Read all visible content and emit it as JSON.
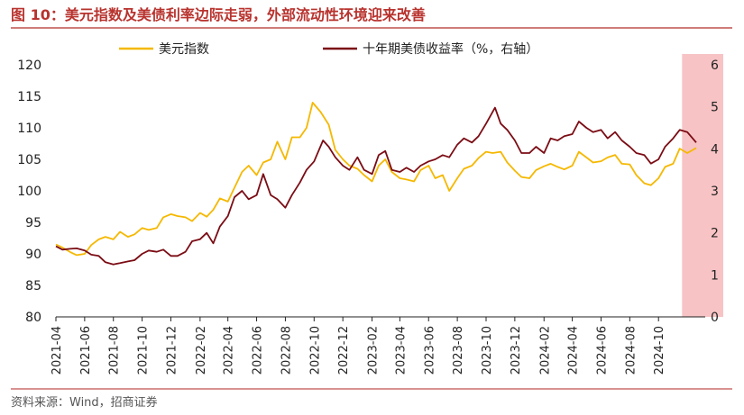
{
  "figure": {
    "title": "图 10：美元指数及美债利率边际走弱，外部流动性环境迎来改善",
    "source": "资料来源：Wind，招商证券"
  },
  "colors": {
    "title": "#b8332e",
    "rule": "#c0504d",
    "dxy": "#f5b800",
    "yield": "#7b0c14",
    "shade": "#f6b8ba"
  },
  "chart_data": {
    "type": "line",
    "x_ticks": [
      "2021-04",
      "2021-06",
      "2021-08",
      "2021-10",
      "2021-12",
      "2022-02",
      "2022-04",
      "2022-06",
      "2022-08",
      "2022-10",
      "2022-12",
      "2023-02",
      "2023-04",
      "2023-06",
      "2023-08",
      "2023-10",
      "2023-12",
      "2024-02",
      "2024-04",
      "2024-06",
      "2024-08",
      "2024-10"
    ],
    "y_left": {
      "min": 80,
      "max": 120,
      "ticks": [
        "80",
        "85",
        "90",
        "95",
        "100",
        "105",
        "110",
        "115",
        "120"
      ]
    },
    "y_right": {
      "min": 0,
      "max": 6,
      "ticks": [
        "0",
        "1",
        "2",
        "3",
        "4",
        "5",
        "6"
      ]
    },
    "x_range": [
      "2021-04-01",
      "2024-12-20"
    ],
    "shaded_region": {
      "from": "2024-11-20",
      "to": "2024-12-20"
    },
    "legend_position": "top",
    "series": [
      {
        "name": "美元指数",
        "axis": "left",
        "dates": [
          "2021-04-01",
          "2021-04-15",
          "2021-05-01",
          "2021-05-15",
          "2021-06-01",
          "2021-06-15",
          "2021-07-01",
          "2021-07-15",
          "2021-08-01",
          "2021-08-15",
          "2021-09-01",
          "2021-09-15",
          "2021-10-01",
          "2021-10-15",
          "2021-11-01",
          "2021-11-15",
          "2021-12-01",
          "2021-12-15",
          "2022-01-01",
          "2022-01-15",
          "2022-02-01",
          "2022-02-15",
          "2022-03-01",
          "2022-03-15",
          "2022-04-01",
          "2022-04-15",
          "2022-05-01",
          "2022-05-15",
          "2022-06-01",
          "2022-06-15",
          "2022-07-01",
          "2022-07-15",
          "2022-08-01",
          "2022-08-15",
          "2022-09-01",
          "2022-09-15",
          "2022-09-28",
          "2022-10-15",
          "2022-11-01",
          "2022-11-15",
          "2022-12-01",
          "2022-12-15",
          "2023-01-01",
          "2023-01-15",
          "2023-02-01",
          "2023-02-15",
          "2023-03-01",
          "2023-03-15",
          "2023-04-01",
          "2023-04-15",
          "2023-05-01",
          "2023-05-15",
          "2023-06-01",
          "2023-06-15",
          "2023-07-01",
          "2023-07-15",
          "2023-08-01",
          "2023-08-15",
          "2023-09-01",
          "2023-09-15",
          "2023-10-01",
          "2023-10-15",
          "2023-11-01",
          "2023-11-15",
          "2023-12-01",
          "2023-12-15",
          "2024-01-01",
          "2024-01-15",
          "2024-02-01",
          "2024-02-15",
          "2024-03-01",
          "2024-03-15",
          "2024-04-01",
          "2024-04-15",
          "2024-05-01",
          "2024-05-15",
          "2024-06-01",
          "2024-06-15",
          "2024-07-01",
          "2024-07-15",
          "2024-08-01",
          "2024-08-15",
          "2024-09-01",
          "2024-09-15",
          "2024-10-01",
          "2024-10-15",
          "2024-11-01",
          "2024-11-15",
          "2024-12-01",
          "2024-12-20"
        ],
        "values": [
          91.5,
          91.0,
          90.3,
          89.8,
          90.0,
          91.4,
          92.3,
          92.7,
          92.3,
          93.5,
          92.7,
          93.1,
          94.1,
          93.8,
          94.1,
          95.8,
          96.3,
          96.0,
          95.8,
          95.2,
          96.5,
          95.9,
          97.0,
          98.8,
          98.3,
          100.5,
          103.0,
          104.0,
          102.5,
          104.5,
          105.0,
          107.8,
          105.0,
          108.5,
          108.5,
          110.0,
          114.0,
          112.5,
          110.5,
          106.5,
          105.0,
          104.0,
          103.5,
          102.5,
          101.5,
          104.0,
          105.0,
          103.0,
          102.0,
          101.8,
          101.5,
          103.3,
          104.0,
          102.0,
          102.5,
          100.0,
          102.0,
          103.5,
          104.0,
          105.2,
          106.2,
          106.0,
          106.2,
          104.5,
          103.2,
          102.2,
          102.0,
          103.3,
          103.9,
          104.3,
          103.8,
          103.4,
          104.0,
          106.2,
          105.3,
          104.5,
          104.7,
          105.3,
          105.7,
          104.3,
          104.2,
          102.5,
          101.2,
          100.9,
          102.0,
          103.8,
          104.3,
          106.7,
          106.0,
          106.8
        ]
      },
      {
        "name": "十年期美债收益率（%，右轴）",
        "axis": "right",
        "dates": [
          "2021-04-01",
          "2021-04-15",
          "2021-05-01",
          "2021-05-15",
          "2021-06-01",
          "2021-06-15",
          "2021-07-01",
          "2021-07-15",
          "2021-08-01",
          "2021-08-15",
          "2021-09-01",
          "2021-09-15",
          "2021-10-01",
          "2021-10-15",
          "2021-11-01",
          "2021-11-15",
          "2021-12-01",
          "2021-12-15",
          "2022-01-01",
          "2022-01-15",
          "2022-02-01",
          "2022-02-15",
          "2022-03-01",
          "2022-03-15",
          "2022-04-01",
          "2022-04-15",
          "2022-05-01",
          "2022-05-15",
          "2022-06-01",
          "2022-06-15",
          "2022-07-01",
          "2022-07-15",
          "2022-08-01",
          "2022-08-15",
          "2022-09-01",
          "2022-09-15",
          "2022-10-01",
          "2022-10-20",
          "2022-11-01",
          "2022-11-15",
          "2022-12-01",
          "2022-12-15",
          "2023-01-01",
          "2023-01-15",
          "2023-02-01",
          "2023-02-15",
          "2023-03-01",
          "2023-03-15",
          "2023-04-01",
          "2023-04-15",
          "2023-05-01",
          "2023-05-15",
          "2023-06-01",
          "2023-06-15",
          "2023-07-01",
          "2023-07-15",
          "2023-08-01",
          "2023-08-15",
          "2023-09-01",
          "2023-09-15",
          "2023-10-01",
          "2023-10-20",
          "2023-11-01",
          "2023-11-15",
          "2023-12-01",
          "2023-12-15",
          "2024-01-01",
          "2024-01-15",
          "2024-02-01",
          "2024-02-15",
          "2024-03-01",
          "2024-03-15",
          "2024-04-01",
          "2024-04-15",
          "2024-05-01",
          "2024-05-15",
          "2024-06-01",
          "2024-06-15",
          "2024-07-01",
          "2024-07-15",
          "2024-08-01",
          "2024-08-15",
          "2024-09-01",
          "2024-09-15",
          "2024-10-01",
          "2024-10-15",
          "2024-11-01",
          "2024-11-15",
          "2024-12-01",
          "2024-12-20"
        ],
        "values": [
          1.68,
          1.6,
          1.62,
          1.63,
          1.58,
          1.48,
          1.45,
          1.3,
          1.25,
          1.28,
          1.32,
          1.35,
          1.5,
          1.58,
          1.55,
          1.6,
          1.45,
          1.45,
          1.55,
          1.8,
          1.85,
          2.0,
          1.75,
          2.15,
          2.4,
          2.85,
          3.0,
          2.8,
          2.9,
          3.4,
          2.9,
          2.8,
          2.6,
          2.9,
          3.2,
          3.5,
          3.7,
          4.2,
          4.05,
          3.8,
          3.6,
          3.5,
          3.8,
          3.5,
          3.4,
          3.85,
          3.95,
          3.5,
          3.45,
          3.55,
          3.45,
          3.6,
          3.7,
          3.75,
          3.85,
          3.8,
          4.1,
          4.25,
          4.15,
          4.3,
          4.6,
          4.98,
          4.6,
          4.45,
          4.2,
          3.9,
          3.9,
          4.05,
          3.9,
          4.25,
          4.2,
          4.3,
          4.35,
          4.65,
          4.5,
          4.4,
          4.45,
          4.25,
          4.4,
          4.2,
          4.05,
          3.9,
          3.85,
          3.65,
          3.75,
          4.05,
          4.25,
          4.45,
          4.4,
          4.15
        ]
      }
    ]
  }
}
